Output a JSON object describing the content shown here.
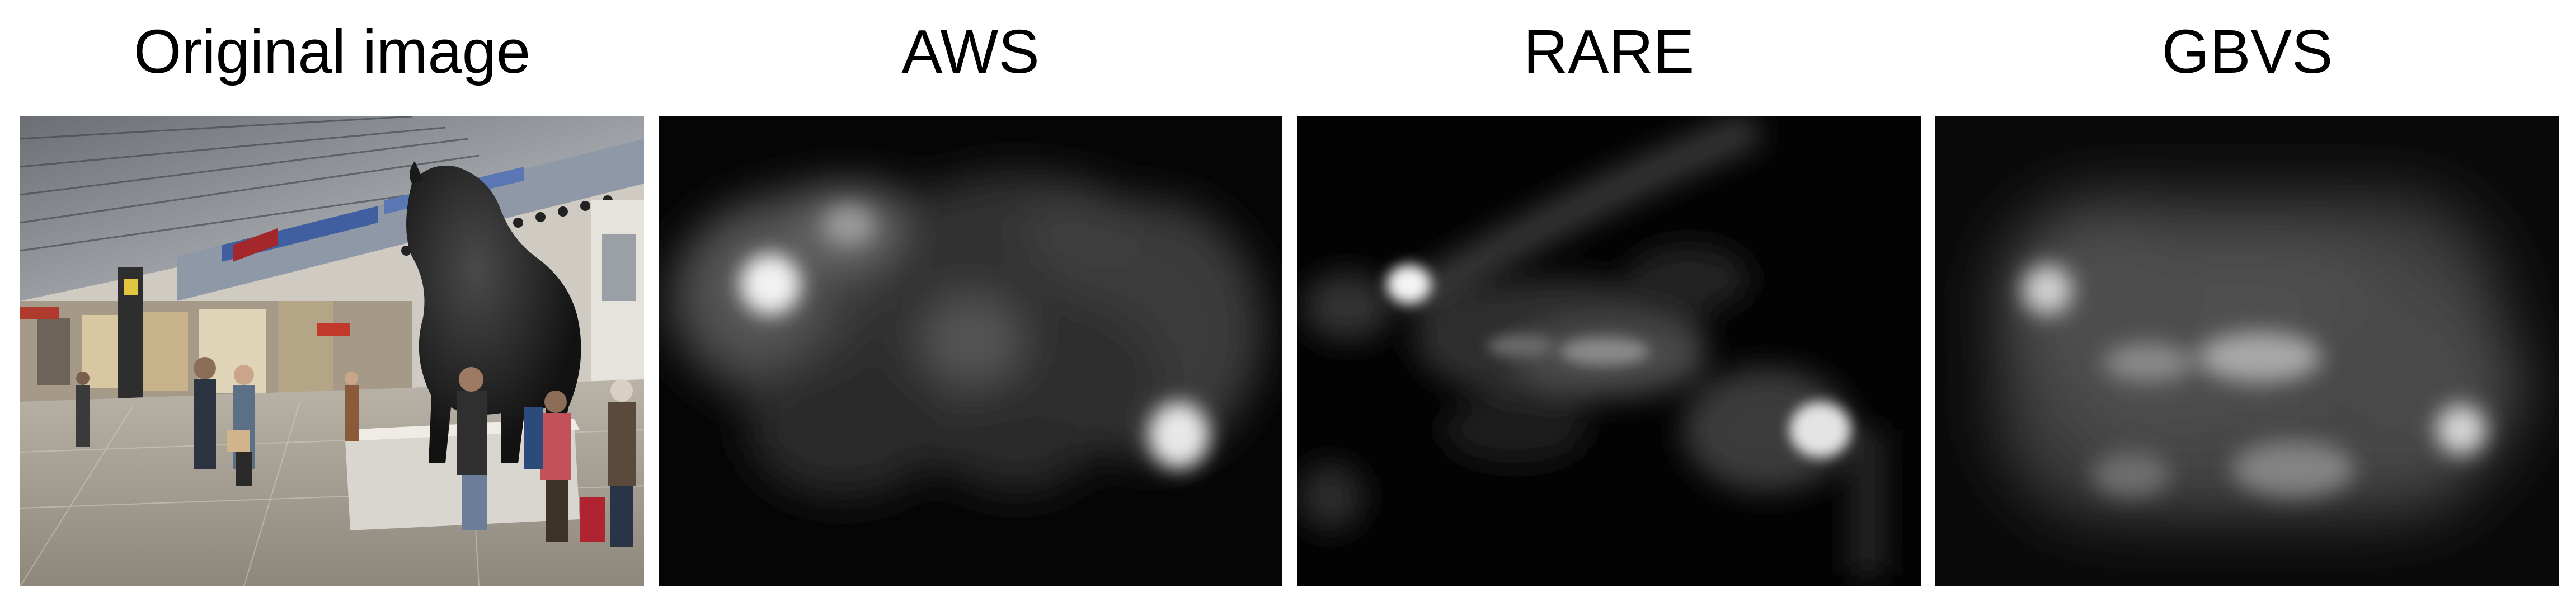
{
  "panels": [
    {
      "title": "Original image",
      "kind": "photo"
    },
    {
      "title": "AWS",
      "kind": "saliency-map"
    },
    {
      "title": "RARE",
      "kind": "saliency-map"
    },
    {
      "title": "GBVS",
      "kind": "saliency-map"
    }
  ]
}
